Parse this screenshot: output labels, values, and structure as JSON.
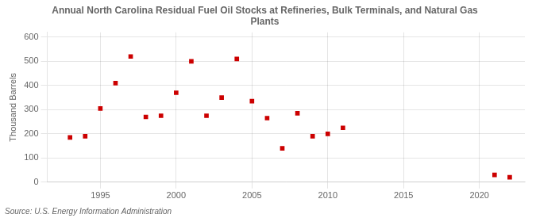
{
  "chart_data": {
    "type": "scatter",
    "title": "Annual North Carolina Residual Fuel Oil Stocks at Refineries, Bulk Terminals, and Natural Gas\nPlants",
    "ylabel": "Thousand Barrels",
    "annotations": [
      "Source: U.S. Energy Information Administration"
    ],
    "x": [
      1993,
      1994,
      1995,
      1996,
      1997,
      1998,
      1999,
      2000,
      2001,
      2002,
      2003,
      2004,
      2005,
      2006,
      2007,
      2008,
      2009,
      2010,
      2011,
      2021,
      2022
    ],
    "values": [
      185,
      190,
      305,
      410,
      520,
      270,
      275,
      370,
      500,
      275,
      350,
      510,
      335,
      265,
      140,
      285,
      190,
      200,
      225,
      30,
      20
    ],
    "color": "#cc0000",
    "marker": "square",
    "xlim": [
      1991.5,
      2023
    ],
    "ylim": [
      0,
      620
    ],
    "xticks": [
      1995,
      2000,
      2005,
      2010,
      2015,
      2020
    ],
    "yticks": [
      0,
      100,
      200,
      300,
      400,
      500,
      600
    ],
    "grid": true
  }
}
